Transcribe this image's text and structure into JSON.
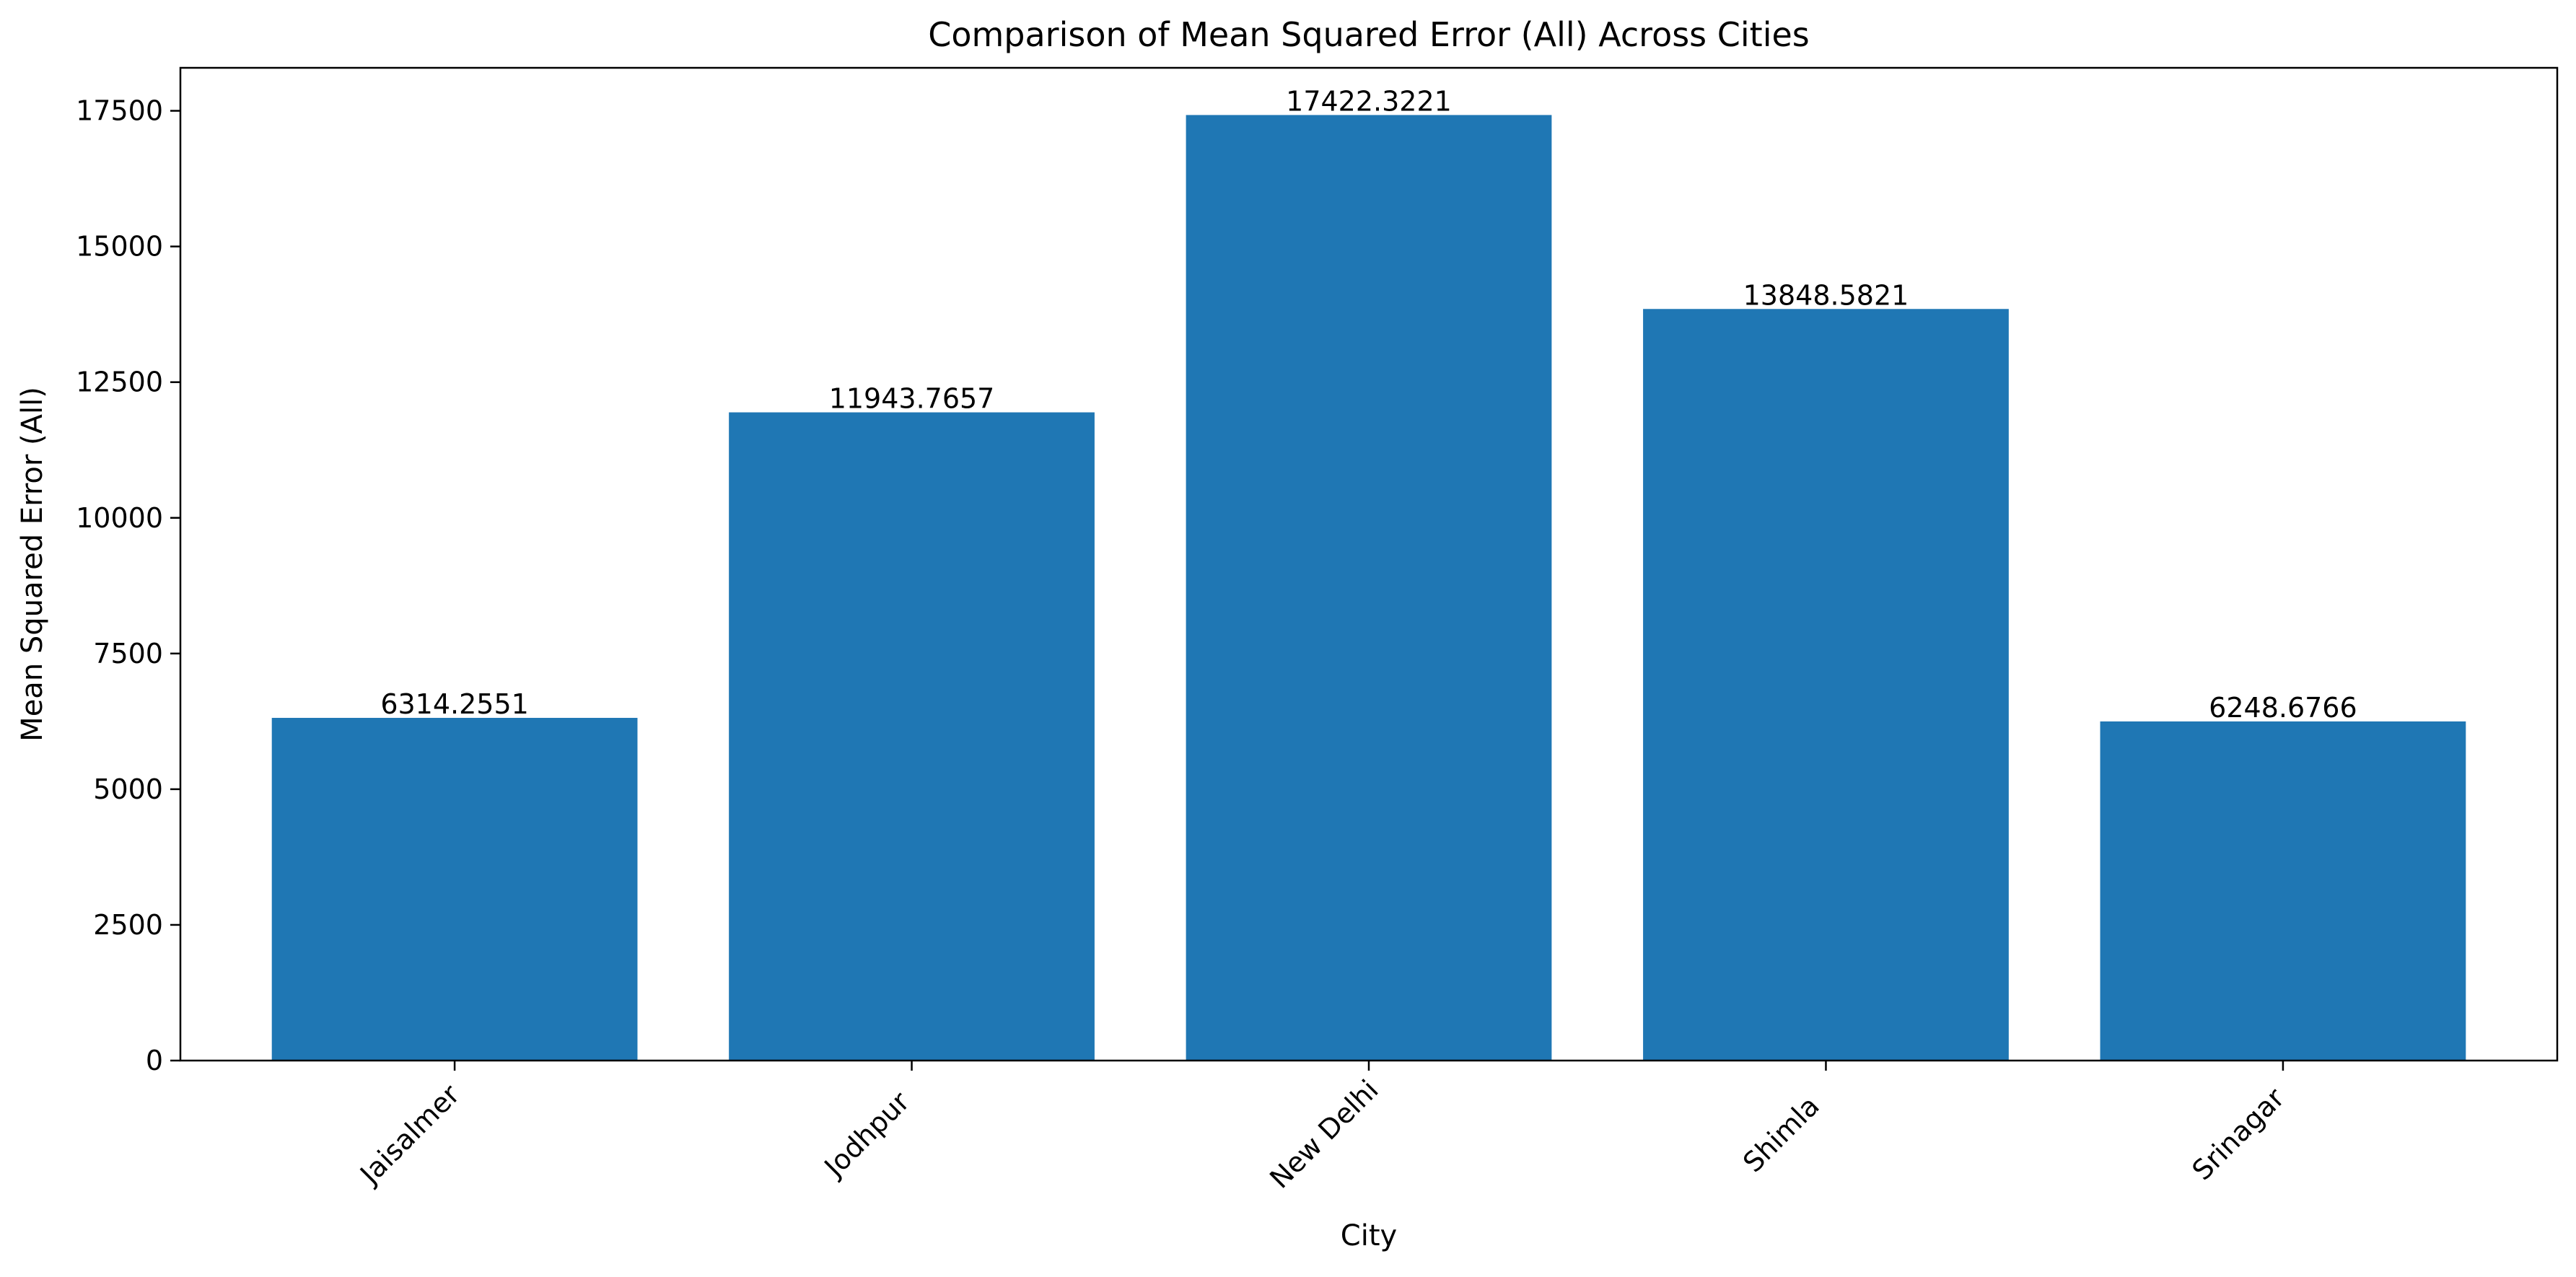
{
  "chart_data": {
    "type": "bar",
    "title": "Comparison of Mean Squared Error (All) Across Cities",
    "xlabel": "City",
    "ylabel": "Mean Squared Error (All)",
    "categories": [
      "Jaisalmer",
      "Jodhpur",
      "New Delhi",
      "Shimla",
      "Srinagar"
    ],
    "values": [
      6314.2551,
      11943.7657,
      17422.3221,
      13848.5821,
      6248.6766
    ],
    "value_labels": [
      "6314.2551",
      "11943.7657",
      "17422.3221",
      "13848.5821",
      "6248.6766"
    ],
    "ylim": [
      0,
      18292
    ],
    "y_ticks": [
      0,
      2500,
      5000,
      7500,
      10000,
      12500,
      15000,
      17500
    ],
    "y_tick_labels": [
      "0",
      "2500",
      "5000",
      "7500",
      "10000",
      "12500",
      "15000",
      "17500"
    ],
    "x_tick_rotation": 45,
    "grid": false,
    "legend": "none",
    "bar_color": "#1f77b4"
  }
}
